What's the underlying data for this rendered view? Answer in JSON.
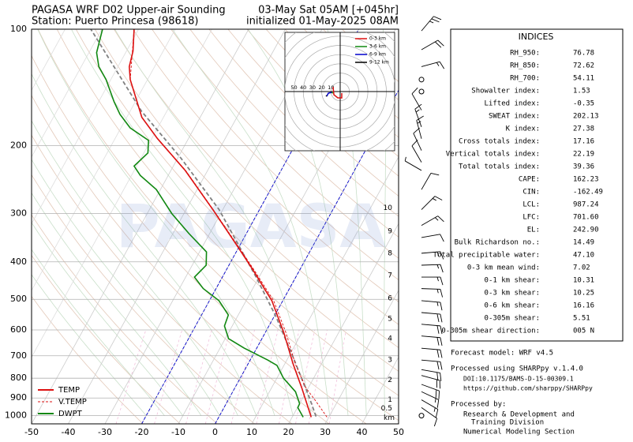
{
  "chart_data": {
    "type": "skewt",
    "title_left": [
      "PAGASA WRF D02 Upper-air Sounding",
      "Station: Puerto Princesa (98618)"
    ],
    "title_right": [
      "03-May Sat 05AM [+045hr]",
      "initialized 01-May-2025 08AM"
    ],
    "xlim": [
      -50,
      50
    ],
    "xticks": [
      -50,
      -40,
      -30,
      -20,
      -10,
      0,
      10,
      20,
      30,
      40,
      50
    ],
    "ylim": [
      1050,
      100
    ],
    "yticks": [
      100,
      200,
      300,
      400,
      500,
      600,
      700,
      800,
      900,
      1000
    ],
    "log_y": true,
    "grid": true,
    "legend": "lower left",
    "highlight_isotherms": [
      0,
      -20
    ],
    "highlight_color": "#0000cc",
    "series": [
      {
        "name": "TEMP",
        "color": "#dd1111",
        "style": "solid",
        "p": [
          1009,
          847,
          735,
          609,
          504,
          417,
          362,
          293,
          232,
          192,
          169,
          135,
          125,
          114,
          100
        ],
        "values": [
          25.2,
          18.2,
          12.3,
          5.0,
          -3.0,
          -13.1,
          -20.9,
          -32.7,
          -46.1,
          -58.4,
          -65.9,
          -74.7,
          -76.9,
          -78.2,
          -81.2
        ]
      },
      {
        "name": "V.TEMP",
        "color": "#dd1111",
        "style": "dashed",
        "p": [
          1009,
          910,
          847,
          735,
          609,
          504,
          417,
          362,
          293,
          232,
          192,
          169,
          135,
          100
        ],
        "values": [
          29.5,
          23.6,
          19.3,
          12.9,
          5.6,
          -2.5,
          -12.8,
          -20.7,
          -32.6,
          -46.0,
          -58.4,
          -65.9,
          -74.7,
          -81.2
        ]
      },
      {
        "name": "DWPT",
        "color": "#118811",
        "style": "solid",
        "p": [
          1009,
          953,
          931,
          867,
          800,
          741,
          718,
          669,
          632,
          586,
          549,
          504,
          469,
          438,
          408,
          377,
          338,
          300,
          260,
          239,
          226,
          209,
          194,
          180,
          166,
          154,
          135,
          125,
          115,
          100
        ],
        "values": [
          23.0,
          20.1,
          20.0,
          17.1,
          11.8,
          8.1,
          4.8,
          -3.4,
          -9.1,
          -12.1,
          -12.7,
          -17.4,
          -23.5,
          -27.6,
          -26.2,
          -28.1,
          -35.6,
          -43.3,
          -51.1,
          -57.6,
          -60.7,
          -58.9,
          -60.6,
          -67.5,
          -72.3,
          -75.8,
          -81.3,
          -85.2,
          -87.9,
          -89.8
        ]
      }
    ],
    "parcel": {
      "color": "#808080",
      "p": [
        1005,
        888,
        703,
        554,
        438,
        293,
        216,
        163,
        100
      ],
      "values": [
        26.4,
        21.3,
        11.1,
        0.5,
        -10.8,
        -31.0,
        -49.0,
        -66.9,
        -93.0
      ]
    },
    "height_markers": [
      {
        "km": 0.5,
        "p": 958
      },
      {
        "km": 1,
        "p": 910
      },
      {
        "km": 2,
        "p": 808
      },
      {
        "km": 3,
        "p": 718
      },
      {
        "km": 4,
        "p": 632
      },
      {
        "km": 5,
        "p": 562
      },
      {
        "km": 6,
        "p": 497
      },
      {
        "km": 7,
        "p": 434
      },
      {
        "km": 8,
        "p": 380
      },
      {
        "km": 9,
        "p": 333
      },
      {
        "km": 10,
        "p": 290
      }
    ],
    "height_unit": "km",
    "winds": [
      {
        "p": 101,
        "dir": 40,
        "spd": 25
      },
      {
        "p": 113,
        "dir": 60,
        "spd": 20
      },
      {
        "p": 125,
        "dir": 75,
        "spd": 15
      },
      {
        "p": 135,
        "dir": 0,
        "spd": 0
      },
      {
        "p": 145,
        "dir": 0,
        "spd": 0
      },
      {
        "p": 162,
        "dir": 330,
        "spd": 10
      },
      {
        "p": 179,
        "dir": 340,
        "spd": 15
      },
      {
        "p": 192,
        "dir": 345,
        "spd": 15
      },
      {
        "p": 206,
        "dir": 335,
        "spd": 10
      },
      {
        "p": 221,
        "dir": 330,
        "spd": 10
      },
      {
        "p": 232,
        "dir": 300,
        "spd": 5
      },
      {
        "p": 260,
        "dir": 30,
        "spd": 10
      },
      {
        "p": 293,
        "dir": 45,
        "spd": 15
      },
      {
        "p": 322,
        "dir": 60,
        "spd": 15
      },
      {
        "p": 346,
        "dir": 80,
        "spd": 10
      },
      {
        "p": 380,
        "dir": 85,
        "spd": 15
      },
      {
        "p": 408,
        "dir": 88,
        "spd": 15
      },
      {
        "p": 438,
        "dir": 90,
        "spd": 15
      },
      {
        "p": 469,
        "dir": 92,
        "spd": 15
      },
      {
        "p": 504,
        "dir": 95,
        "spd": 15
      },
      {
        "p": 541,
        "dir": 95,
        "spd": 20
      },
      {
        "p": 580,
        "dir": 95,
        "spd": 20
      },
      {
        "p": 622,
        "dir": 95,
        "spd": 20
      },
      {
        "p": 669,
        "dir": 95,
        "spd": 20
      },
      {
        "p": 718,
        "dir": 95,
        "spd": 20
      },
      {
        "p": 760,
        "dir": 100,
        "spd": 20
      },
      {
        "p": 787,
        "dir": 105,
        "spd": 20
      },
      {
        "p": 830,
        "dir": 110,
        "spd": 20
      },
      {
        "p": 867,
        "dir": 115,
        "spd": 15
      },
      {
        "p": 910,
        "dir": 120,
        "spd": 15
      },
      {
        "p": 953,
        "dir": 125,
        "spd": 10
      },
      {
        "p": 1000,
        "dir": 0,
        "spd": 0
      }
    ],
    "hodograph": {
      "rings": [
        10,
        20,
        30,
        40,
        50
      ],
      "segments": [
        {
          "name": "0-3 km",
          "color": "#dd1111",
          "u": [
            -7.7,
            -6.8,
            -2.6,
            1.7,
            1.7
          ],
          "v": [
            5,
            -3.4,
            -6.8,
            -6.8,
            -1.7
          ]
        },
        {
          "name": "3-6 km",
          "color": "#118811",
          "u": [
            -7.7,
            -9.4
          ],
          "v": [
            -1.7,
            -0.9
          ]
        },
        {
          "name": "6-9 km",
          "color": "#0000cc",
          "u": [
            -9.4,
            -12.8,
            -14.5
          ],
          "v": [
            -0.9,
            -1.7,
            -5.1
          ]
        },
        {
          "name": "9-12 km",
          "color": "#000000",
          "u": [
            -14.5,
            -15.4
          ],
          "v": [
            -5.1,
            -4.3
          ]
        }
      ]
    },
    "watermark": "PAGASA"
  },
  "indices": {
    "title": "INDICES",
    "rows": [
      [
        "RH_950:",
        "76.78"
      ],
      [
        "RH_850:",
        "72.62"
      ],
      [
        "RH_700:",
        "54.11"
      ],
      [
        "Showalter index:",
        "1.53"
      ],
      [
        "Lifted index:",
        "-0.35"
      ],
      [
        "SWEAT index:",
        "202.13"
      ],
      [
        "K index:",
        "27.38"
      ],
      [
        "Cross totals index:",
        "17.16"
      ],
      [
        "Vertical totals index:",
        "22.19"
      ],
      [
        "Total totals index:",
        "39.36"
      ],
      [
        "CAPE:",
        "162.23"
      ],
      [
        "CIN:",
        "-162.49"
      ],
      [
        "LCL:",
        "987.24"
      ],
      [
        "LFC:",
        "701.60"
      ],
      [
        "EL:",
        "242.90"
      ],
      [
        "Bulk Richardson no.:",
        "14.49"
      ],
      [
        "Total precipitable water:",
        "47.10"
      ],
      [
        "0-3 km mean wind:",
        "7.02"
      ],
      [
        "0-1 km shear:",
        "10.31"
      ],
      [
        "0-3 km shear:",
        "10.25"
      ],
      [
        "0-6 km shear:",
        "16.16"
      ],
      [
        "0-305m shear:",
        "5.51"
      ],
      [
        "0-305m shear direction:",
        "005 N"
      ]
    ]
  },
  "footer": [
    "Forecast model: WRF v4.5",
    "Processed using SHARPpy v.1.4.0",
    "DOI:10.1175/BAMS-D-15-00309.1",
    "https://github.com/sharppy/SHARPpy",
    "Processed by:",
    "Research & Development and",
    "Training Division",
    "Numerical Modeling Section"
  ]
}
